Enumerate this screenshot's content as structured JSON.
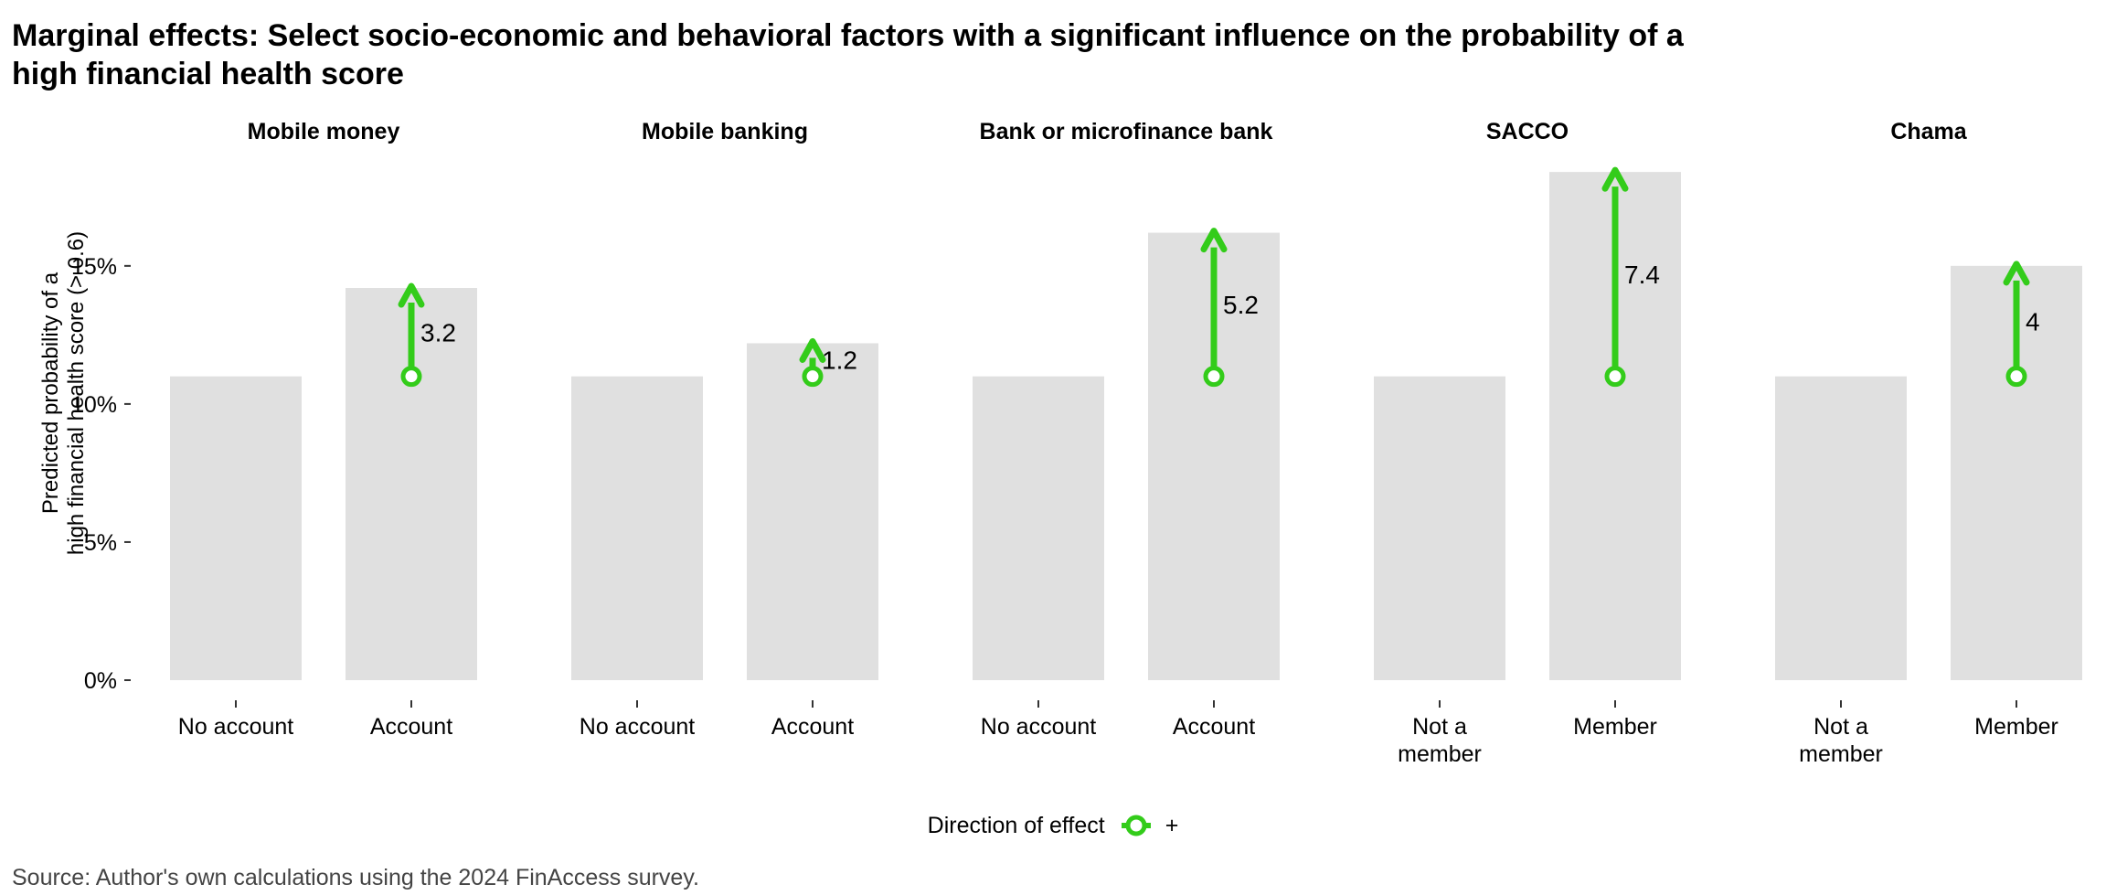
{
  "title": "Marginal effects: Select socio-economic and behavioral factors with a significant influence on the probability of a high financial health score",
  "y_axis_label_line1": "Predicted probability of a",
  "y_axis_label_line2": "high financial health score (> 0.6)",
  "legend": {
    "title": "Direction of effect",
    "label": "+"
  },
  "source": "Source: Author's own calculations using the 2024 FinAccess survey.",
  "colors": {
    "bar": "#e0e0e0",
    "effect": "#33cc1a"
  },
  "chart_data": {
    "type": "bar",
    "ylim": [
      0,
      0.19
    ],
    "y_ticks": [
      0,
      0.05,
      0.1,
      0.15
    ],
    "y_tick_labels": [
      "0%",
      "5%",
      "10%",
      "15%"
    ],
    "grid": false,
    "legend_position": "bottom",
    "facets": [
      {
        "title": "Mobile money",
        "categories": [
          "No account",
          "Account"
        ],
        "values": [
          0.11,
          0.142
        ],
        "effect_label": "3.2"
      },
      {
        "title": "Mobile banking",
        "categories": [
          "No account",
          "Account"
        ],
        "values": [
          0.11,
          0.122
        ],
        "effect_label": "1.2"
      },
      {
        "title": "Bank or microfinance bank",
        "categories": [
          "No account",
          "Account"
        ],
        "values": [
          0.11,
          0.162
        ],
        "effect_label": "5.2"
      },
      {
        "title": "SACCO",
        "categories": [
          "Not a member",
          "Member"
        ],
        "values": [
          0.11,
          0.184
        ],
        "effect_label": "7.4"
      },
      {
        "title": "Chama",
        "categories": [
          "Not a member",
          "Member"
        ],
        "values": [
          0.11,
          0.15
        ],
        "effect_label": "4"
      }
    ]
  }
}
